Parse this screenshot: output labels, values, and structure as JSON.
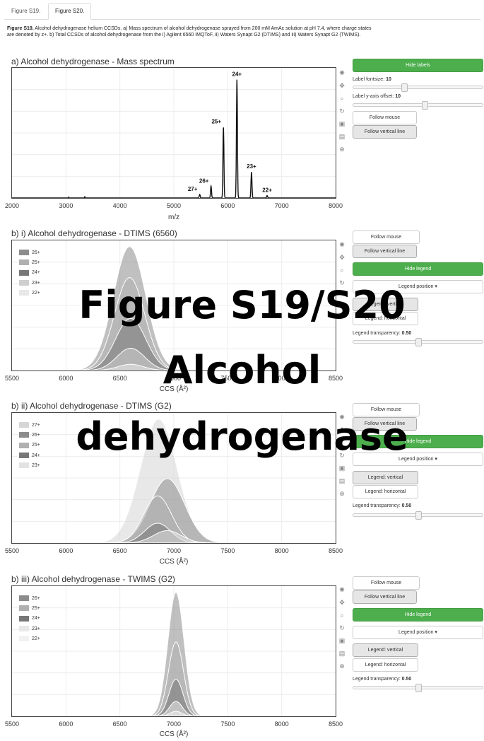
{
  "tabs": [
    {
      "label": "Figure S19."
    },
    {
      "label": "Figure S20."
    }
  ],
  "caption": {
    "bold": "Figure S19.",
    "text": " Alcohol dehydrogenase helium CCSDs. a) Mass spectrum of alcohol dehydrogenase sprayed from 200 mM AmAc solution at pH 7.4, where charge states are denoted by z+. b) Total CCSDs of alcohol dehydrogenase from the i) Agilent 6560 IMQToF, ii) Waters Synapt G2 (DTIMS) and iii) Waters Synapt G2 (TWIMS)."
  },
  "overlay": {
    "line1": "Figure S19/S20",
    "line2": "Alcohol",
    "line3": "dehydrogenase"
  },
  "panels": {
    "a": {
      "title": "a) Alcohol dehydrogenase - Mass spectrum",
      "controls": {
        "hide_labels": "Hide labels",
        "fontsize_label": "Label fontsize:",
        "fontsize_value": "10",
        "offset_label": "Label y-axis offset:",
        "offset_value": "10",
        "follow_mouse": "Follow mouse",
        "follow_vline": "Follow vertical line"
      }
    },
    "b1": {
      "title": "b) i) Alcohol dehydrogenase - DTIMS (6560)",
      "controls": {
        "follow_mouse": "Follow mouse",
        "follow_vline": "Follow vertical line",
        "hide_legend": "Hide legend",
        "legend_position": "Legend position ▾",
        "legend_vertical": "Legend: vertical",
        "legend_horizontal": "Legend: horizontal",
        "transparency_label": "Legend transparency:",
        "transparency_value": "0.50"
      }
    },
    "b2": {
      "title": "b) ii) Alcohol dehydrogenase - DTIMS (G2)",
      "controls": {
        "follow_mouse": "Follow mouse",
        "follow_vline": "Follow vertical line",
        "hide_legend": "Hide legend",
        "legend_position": "Legend position ▾",
        "legend_vertical": "Legend: vertical",
        "legend_horizontal": "Legend: horizontal",
        "transparency_label": "Legend transparency:",
        "transparency_value": "0.50"
      }
    },
    "b3": {
      "title": "b) iii) Alcohol dehydrogenase - TWIMS (G2)",
      "controls": {
        "follow_mouse": "Follow mouse",
        "follow_vline": "Follow vertical line",
        "hide_legend": "Hide legend",
        "legend_position": "Legend position ▾",
        "legend_vertical": "Legend: vertical",
        "legend_horizontal": "Legend: horizontal",
        "transparency_label": "Legend transparency:",
        "transparency_value": "0.50"
      }
    }
  },
  "chart_data": [
    {
      "id": "a",
      "type": "line",
      "title": "a) Alcohol dehydrogenase - Mass spectrum",
      "xlabel": "m/z",
      "ylabel": "",
      "xlim": [
        2000,
        8000
      ],
      "ylim": [
        0,
        1.1
      ],
      "xticks": [
        2000,
        3000,
        4000,
        5000,
        6000,
        7000,
        8000
      ],
      "peaks": [
        {
          "label": "27+",
          "mz": 5480,
          "intensity": 0.03
        },
        {
          "label": "26+",
          "mz": 5690,
          "intensity": 0.1
        },
        {
          "label": "25+",
          "mz": 5920,
          "intensity": 0.6
        },
        {
          "label": "24+",
          "mz": 6170,
          "intensity": 1.0
        },
        {
          "label": "23+",
          "mz": 6440,
          "intensity": 0.22
        },
        {
          "label": "22+",
          "mz": 6730,
          "intensity": 0.02
        }
      ],
      "grid": true
    },
    {
      "id": "b1",
      "type": "area",
      "title": "b) i) Alcohol dehydrogenase - DTIMS (6560)",
      "xlabel": "CCS (Å²)",
      "xlim": [
        5500,
        8500
      ],
      "ylim": [
        0,
        1.05
      ],
      "xticks": [
        5500,
        6000,
        6500,
        7000,
        7500,
        8000,
        8500
      ],
      "legend_position": "top-left",
      "series": [
        {
          "name": "26+",
          "center": 6590,
          "width": 150,
          "height": 1.0,
          "color": "#8c8c8c"
        },
        {
          "name": "25+",
          "center": 6590,
          "width": 140,
          "height": 0.75,
          "color": "#b0b0b0"
        },
        {
          "name": "24+",
          "center": 6600,
          "width": 140,
          "height": 0.42,
          "color": "#777777"
        },
        {
          "name": "23+",
          "center": 6600,
          "width": 130,
          "height": 0.18,
          "color": "#cfcfcf"
        },
        {
          "name": "22+",
          "center": 6600,
          "width": 120,
          "height": 0.05,
          "color": "#e8e8e8"
        }
      ],
      "grid": true
    },
    {
      "id": "b2",
      "type": "area",
      "title": "b) ii) Alcohol dehydrogenase - DTIMS (G2)",
      "xlabel": "CCS (Å²)",
      "xlim": [
        5500,
        8500
      ],
      "ylim": [
        0,
        1.05
      ],
      "xticks": [
        5500,
        6000,
        6500,
        7000,
        7500,
        8000,
        8500
      ],
      "legend_position": "top-left",
      "series": [
        {
          "name": "27+",
          "center": 6860,
          "width": 170,
          "height": 1.0,
          "color": "#d6d6d6"
        },
        {
          "name": "26+",
          "center": 6940,
          "width": 160,
          "height": 0.52,
          "color": "#8c8c8c"
        },
        {
          "name": "25+",
          "center": 6850,
          "width": 130,
          "height": 0.38,
          "color": "#b0b0b0"
        },
        {
          "name": "24+",
          "center": 6850,
          "width": 120,
          "height": 0.16,
          "color": "#777777"
        },
        {
          "name": "23+",
          "center": 6940,
          "width": 130,
          "height": 0.1,
          "color": "#e3e3e3"
        }
      ],
      "grid": true
    },
    {
      "id": "b3",
      "type": "area",
      "title": "b) iii) Alcohol dehydrogenase - TWIMS (G2)",
      "xlabel": "CCS (Å²)",
      "xlim": [
        5500,
        8500
      ],
      "ylim": [
        0,
        1.05
      ],
      "xticks": [
        5500,
        6000,
        6500,
        7000,
        7500,
        8000,
        8500
      ],
      "legend_position": "top-left",
      "series": [
        {
          "name": "26+",
          "center": 7020,
          "width": 75,
          "height": 1.0,
          "color": "#8c8c8c"
        },
        {
          "name": "25+",
          "center": 7020,
          "width": 70,
          "height": 0.6,
          "color": "#b0b0b0"
        },
        {
          "name": "24+",
          "center": 7020,
          "width": 65,
          "height": 0.3,
          "color": "#777777"
        },
        {
          "name": "23+",
          "center": 7020,
          "width": 60,
          "height": 0.12,
          "color": "#e8e8e8"
        },
        {
          "name": "22+",
          "center": 7020,
          "width": 55,
          "height": 0.04,
          "color": "#f2f2f2"
        }
      ],
      "grid": true
    }
  ]
}
